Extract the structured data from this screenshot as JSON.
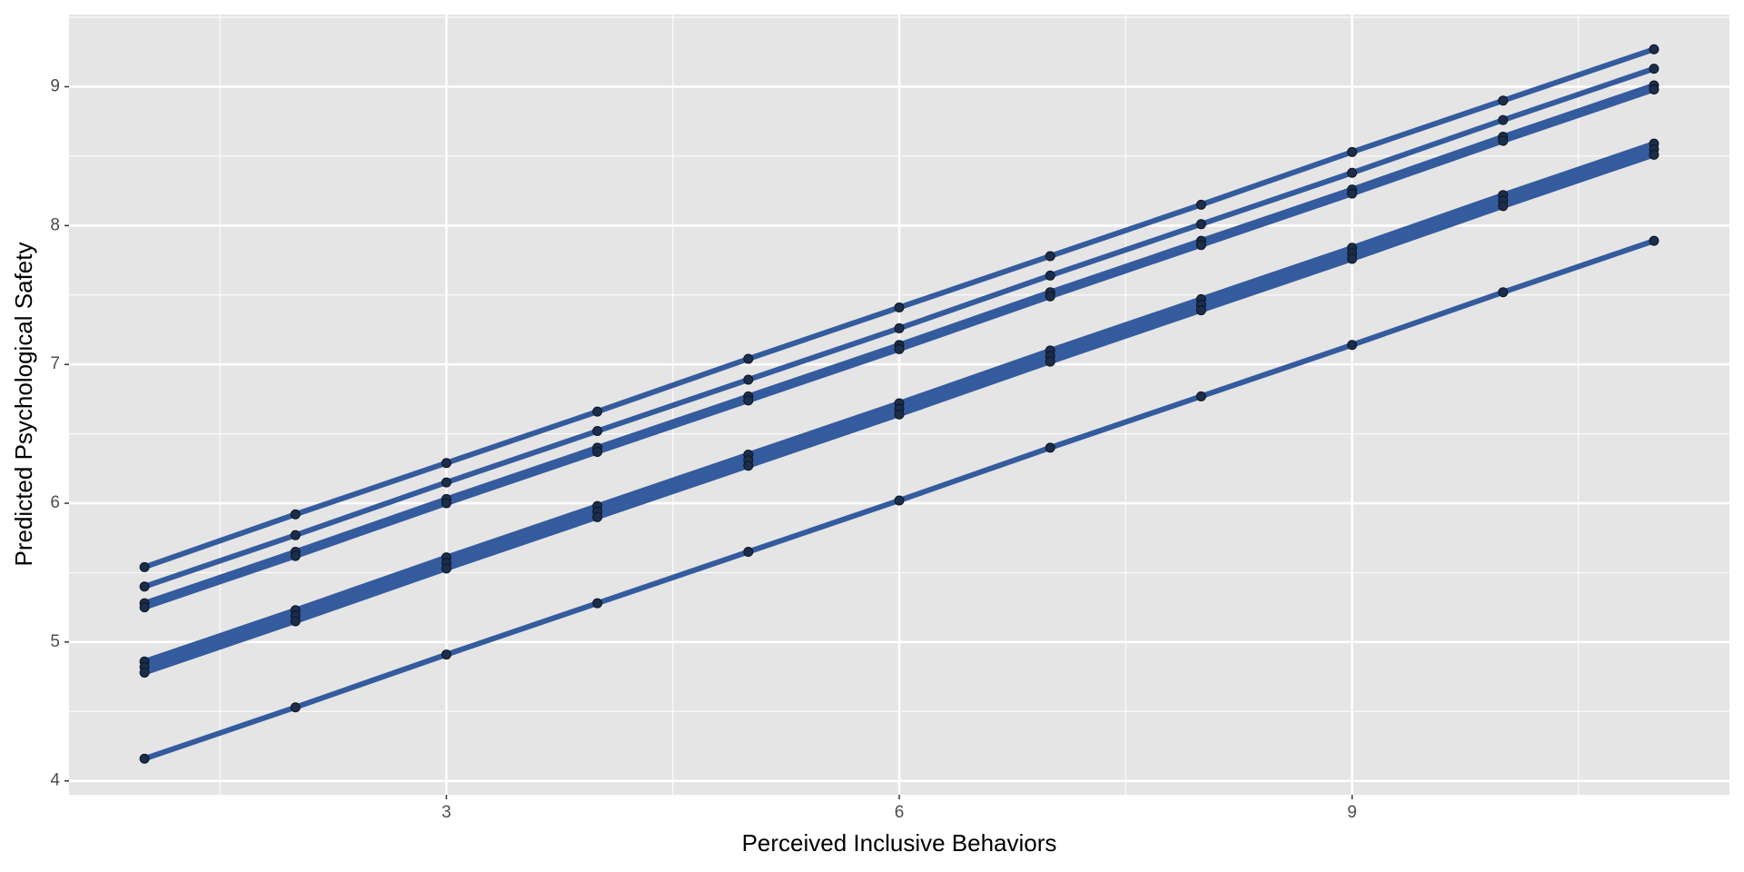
{
  "chart_data": {
    "type": "line",
    "x_label": "Perceived Inclusive Behaviors",
    "y_label": "Predicted Psychological Safety",
    "x": [
      1,
      2,
      3,
      4,
      5,
      6,
      7,
      8,
      9,
      10,
      11
    ],
    "series": [
      {
        "color": "#345b9d",
        "values": [
          5.54,
          5.92,
          6.29,
          6.66,
          7.04,
          7.41,
          7.78,
          8.15,
          8.53,
          8.9,
          9.27
        ]
      },
      {
        "color": "#345b9d",
        "values": [
          5.4,
          5.77,
          6.15,
          6.52,
          6.89,
          7.26,
          7.64,
          8.01,
          8.38,
          8.76,
          9.13
        ]
      },
      {
        "color": "#345b9d",
        "values": [
          5.28,
          5.65,
          6.03,
          6.4,
          6.77,
          7.14,
          7.52,
          7.89,
          8.26,
          8.64,
          9.01
        ]
      },
      {
        "color": "#345b9d",
        "values": [
          5.25,
          5.62,
          6.0,
          6.37,
          6.74,
          7.11,
          7.49,
          7.86,
          8.23,
          8.61,
          8.98
        ]
      },
      {
        "color": "#345b9d",
        "values": [
          4.86,
          5.23,
          5.61,
          5.98,
          6.35,
          6.72,
          7.1,
          7.47,
          7.84,
          8.22,
          8.59
        ]
      },
      {
        "color": "#345b9d",
        "values": [
          4.82,
          5.19,
          5.57,
          5.94,
          6.31,
          6.68,
          7.06,
          7.43,
          7.8,
          8.18,
          8.55
        ]
      },
      {
        "color": "#345b9d",
        "values": [
          4.78,
          5.15,
          5.53,
          5.9,
          6.27,
          6.64,
          7.02,
          7.39,
          7.76,
          8.14,
          8.51
        ]
      },
      {
        "color": "#345b9d",
        "values": [
          4.16,
          4.53,
          4.91,
          5.28,
          5.65,
          6.02,
          6.4,
          6.77,
          7.14,
          7.52,
          7.89
        ]
      }
    ],
    "point_color": "#1c2d4a",
    "xlim": [
      0.5,
      11.5
    ],
    "ylim": [
      3.9,
      9.52
    ],
    "xticks": [
      3,
      6,
      9
    ],
    "yticks": [
      4,
      5,
      6,
      7,
      8,
      9
    ],
    "x_minor_ticks": [
      1.5,
      4.5,
      7.5,
      10.5
    ],
    "y_minor_ticks": [
      4.5,
      5.5,
      6.5,
      7.5,
      8.5,
      9.5
    ],
    "grid": true
  }
}
